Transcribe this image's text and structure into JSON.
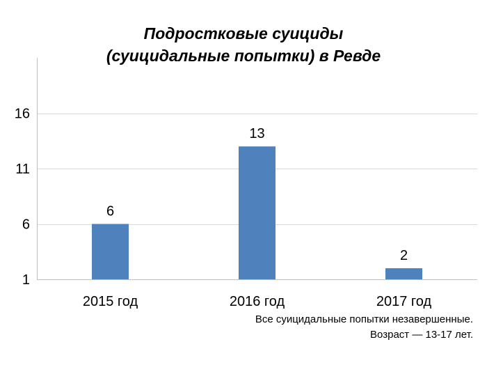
{
  "chart_data": {
    "type": "bar",
    "title_line1": "Подростковые суициды",
    "title_line2": "(суицидальные попытки) в Ревде",
    "categories": [
      "2015 год",
      "2016 год",
      "2017 год"
    ],
    "values": [
      6,
      13,
      2
    ],
    "data_labels": [
      "6",
      "13",
      "2"
    ],
    "ylim": [
      1,
      21
    ],
    "yticks": [
      1,
      6,
      11,
      16
    ],
    "ytick_labels": [
      "1",
      "6",
      "11",
      "16"
    ],
    "grid": true,
    "bar_color": "#4f81bd",
    "gridline_color": "#d9d9d9"
  },
  "footnote": {
    "line1": "Все суицидальные попытки незавершенные.",
    "line2": "Возраст — 13-17 лет."
  }
}
